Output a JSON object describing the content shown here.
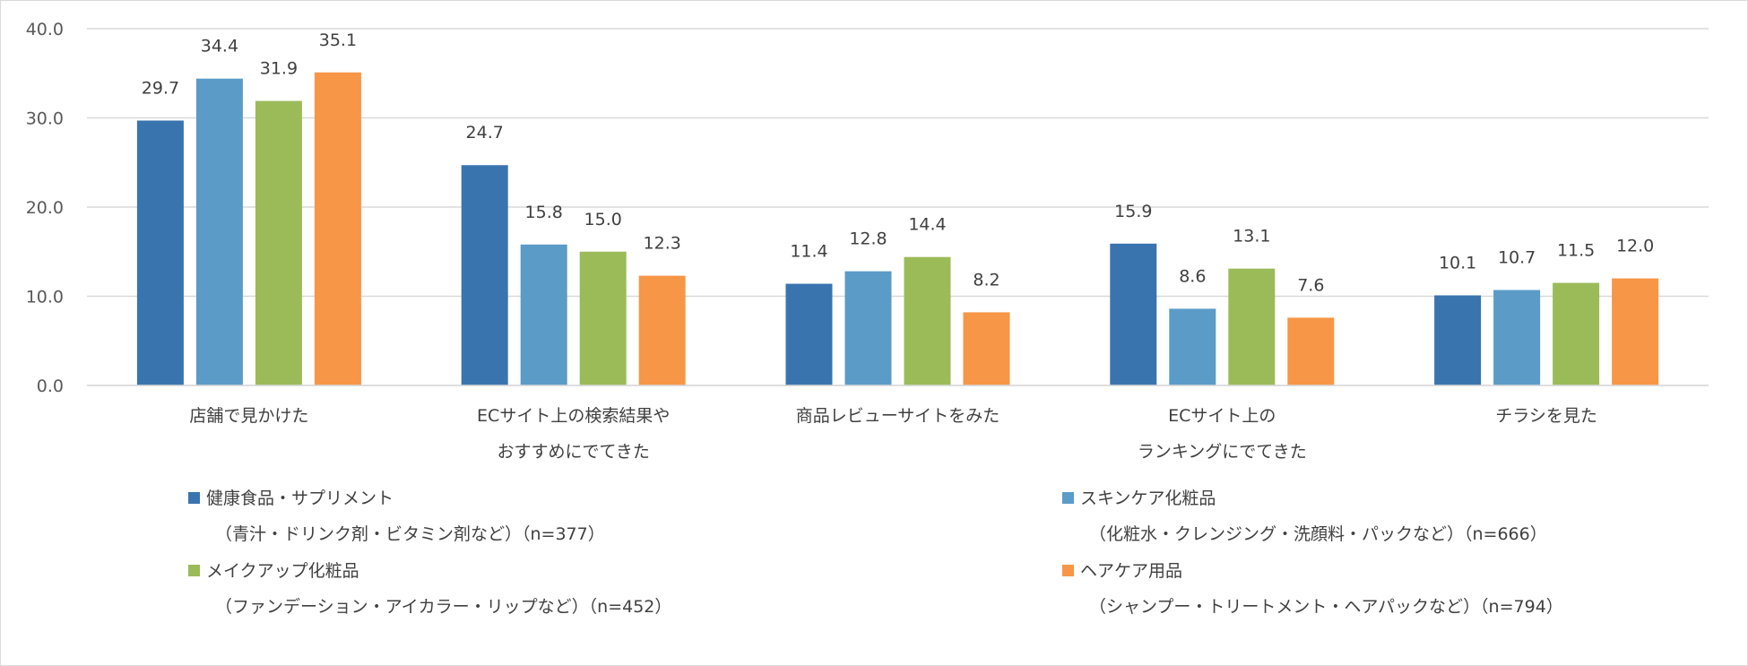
{
  "chart_data": {
    "type": "bar",
    "ylim": [
      0,
      40
    ],
    "yticks": [
      "0.0",
      "10.0",
      "20.0",
      "30.0",
      "40.0"
    ],
    "grid": true,
    "legend_position": "bottom",
    "categories": [
      [
        "店舗で見かけた"
      ],
      [
        "ECサイト上の検索結果や",
        "おすすめにでてきた"
      ],
      [
        "商品レビューサイトをみた"
      ],
      [
        "ECサイト上の",
        "ランキングにでてきた"
      ],
      [
        "チラシを見た"
      ]
    ],
    "series": [
      {
        "name": "健康食品・サプリメント",
        "detail": "（青汁・ドリンク剤・ビタミン剤など）（n=377）",
        "color": "#3a74ae",
        "values": [
          29.7,
          24.7,
          11.4,
          15.9,
          10.1
        ],
        "labels": [
          "29.7",
          "24.7",
          "11.4",
          "15.9",
          "10.1"
        ]
      },
      {
        "name": "スキンケア化粧品",
        "detail": "（化粧水・クレンジング・洗顔料・パックなど）（n=666）",
        "color": "#5b9bc8",
        "values": [
          34.4,
          15.8,
          12.8,
          8.6,
          10.7
        ],
        "labels": [
          "34.4",
          "15.8",
          "12.8",
          "8.6",
          "10.7"
        ]
      },
      {
        "name": "メイクアップ化粧品",
        "detail": "（ファンデーション・アイカラー・リップなど）（n=452）",
        "color": "#9bbb59",
        "values": [
          31.9,
          15.0,
          14.4,
          13.1,
          11.5
        ],
        "labels": [
          "31.9",
          "15.0",
          "14.4",
          "13.1",
          "11.5"
        ]
      },
      {
        "name": "ヘアケア用品",
        "detail": "（シャンプー・トリートメント・ヘアパックなど）（n=794）",
        "color": "#f79646",
        "values": [
          35.1,
          12.3,
          8.2,
          7.6,
          12.0
        ],
        "labels": [
          "35.1",
          "12.3",
          "8.2",
          "7.6",
          "12.0"
        ]
      }
    ]
  }
}
